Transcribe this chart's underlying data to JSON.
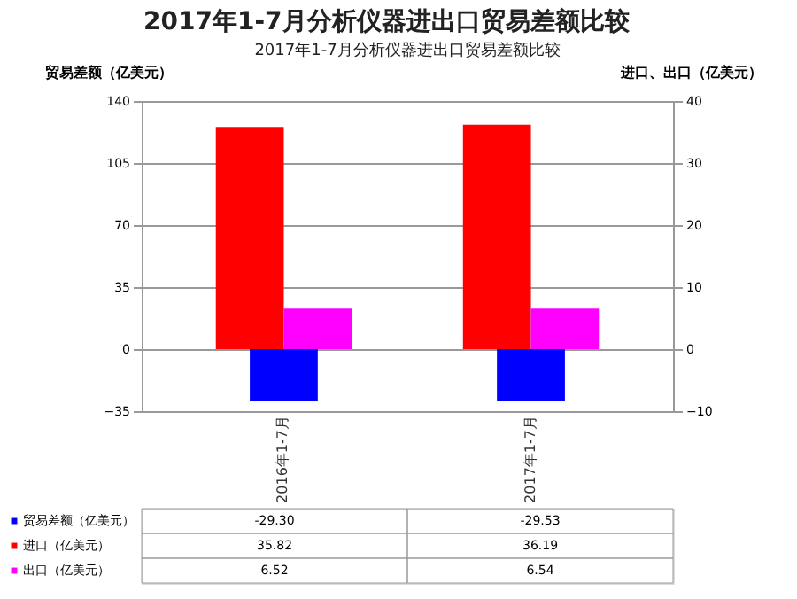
{
  "chart_data": {
    "type": "bar",
    "title": "2017年1-7月分析仪器进出口贸易差额比较",
    "subtitle": "2017年1-7月分析仪器进出口贸易差额比较",
    "ylabel": "贸易差额（亿美元）",
    "y2label": "进口、出口（亿美元）",
    "categories": [
      "2016年1-7月",
      "2017年1-7月"
    ],
    "series": [
      {
        "name": "贸易差额（亿美元）",
        "color": "#0000ff",
        "values": [
          -29.3,
          -29.53
        ],
        "value_labels": [
          "-29.30",
          "-29.53"
        ]
      },
      {
        "name": "进口（亿美元）",
        "color": "#ff0000",
        "values": [
          35.82,
          36.19
        ],
        "axis": "y2",
        "value_labels": [
          "35.82",
          "36.19"
        ]
      },
      {
        "name": "出口（亿美元）",
        "color": "#ff00ff",
        "values": [
          6.52,
          6.54
        ],
        "axis": "y2",
        "value_labels": [
          "6.52",
          "6.54"
        ]
      }
    ],
    "ylim": [
      -35,
      140
    ],
    "yticks": [
      -35,
      0,
      35,
      70,
      105,
      140
    ],
    "y2lim": [
      -10,
      40
    ],
    "y2ticks": [
      -10,
      0,
      10,
      20,
      30,
      40
    ],
    "grid": "y",
    "legend": "bottom"
  }
}
